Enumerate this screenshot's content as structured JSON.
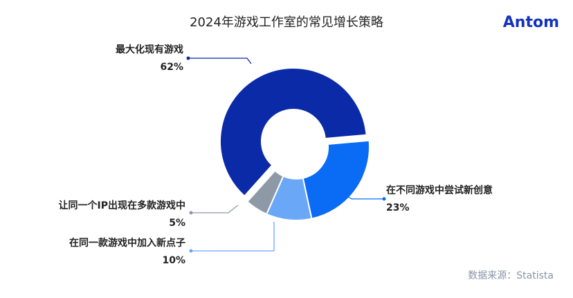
{
  "chart_data": {
    "type": "donut",
    "title": "2024年游戏工作室的常见增长策略",
    "brand": "Antom",
    "source": "数据来源：Statista",
    "categories": [
      "在不同游戏中尝试新创意",
      "在同一款游戏中加入新点子",
      "让同一个IP出现在多款游戏中",
      "最大化现有游戏"
    ],
    "values": [
      23,
      10,
      5,
      62
    ],
    "value_labels": [
      "23%",
      "10%",
      "5%",
      "62%"
    ],
    "colors": [
      "#0a6cf5",
      "#6aa8f7",
      "#8e99a8",
      "#0b2aa8"
    ]
  }
}
